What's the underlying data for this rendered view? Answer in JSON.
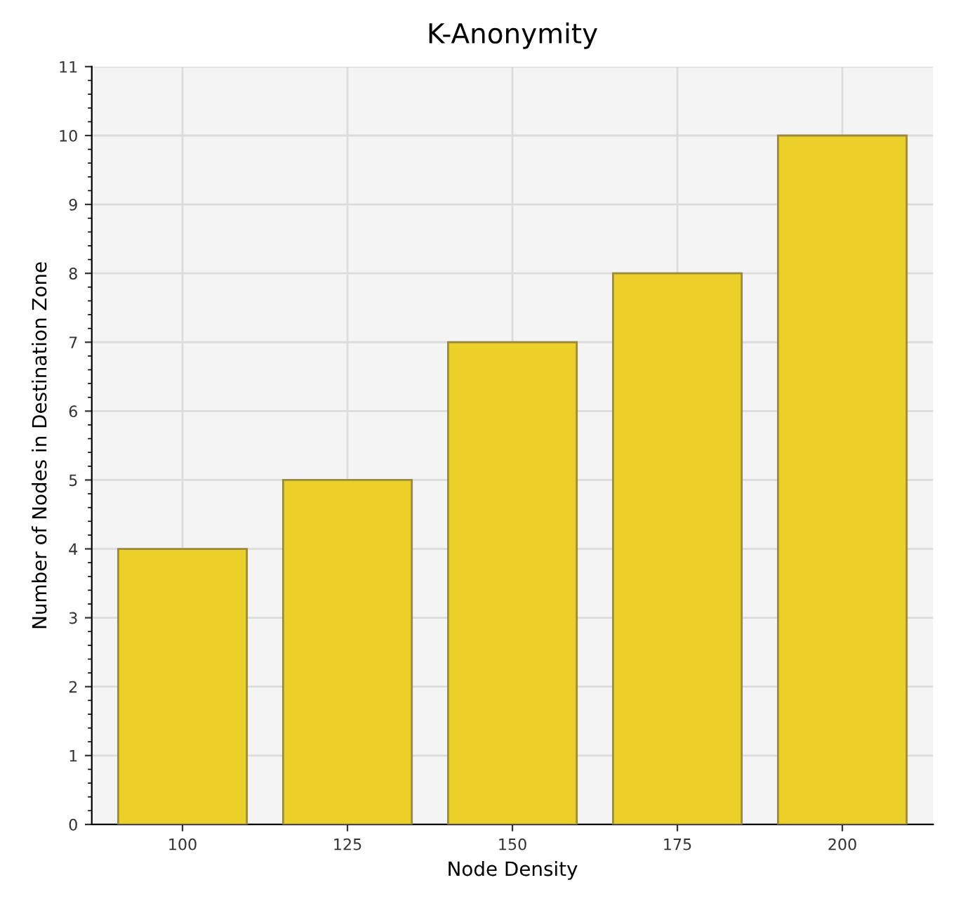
{
  "chart_data": {
    "type": "bar",
    "title": "K-Anonymity",
    "xlabel": "Node Density",
    "ylabel": "Number of Nodes in Destination Zone",
    "categories": [
      "100",
      "125",
      "150",
      "175",
      "200"
    ],
    "values": [
      4,
      5,
      7,
      8,
      10
    ],
    "color": "#ecd02a",
    "ylim": [
      0,
      11
    ],
    "yticks": [
      0,
      1,
      2,
      3,
      4,
      5,
      6,
      7,
      8,
      9,
      10,
      11
    ],
    "grid": true,
    "legend": false
  }
}
